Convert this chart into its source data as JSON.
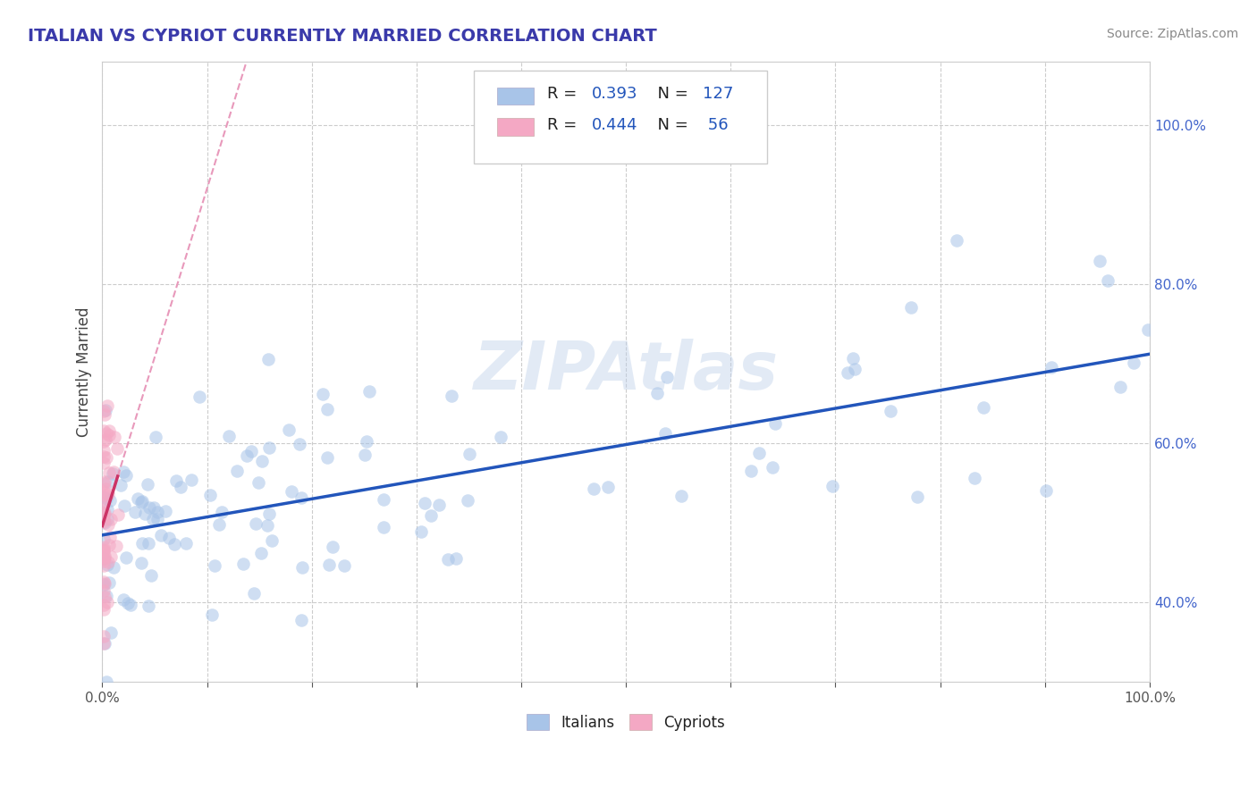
{
  "title": "ITALIAN VS CYPRIOT CURRENTLY MARRIED CORRELATION CHART",
  "source_text": "Source: ZipAtlas.com",
  "ylabel": "Currently Married",
  "title_color": "#3a3aaa",
  "source_color": "#888888",
  "background_color": "#ffffff",
  "grid_color": "#cccccc",
  "watermark_text": "ZIPAtlas",
  "watermark_color": "#b8cce8",
  "legend_R_italian": "0.393",
  "legend_N_italian": "127",
  "legend_R_cypriot": "0.444",
  "legend_N_cypriot": "56",
  "italian_dot_color": "#a8c4e8",
  "cypriot_dot_color": "#f4a8c4",
  "italian_line_color": "#2255bb",
  "cypriot_line_color": "#cc3366",
  "trendline_dashed_color": "#e899bb",
  "tick_color": "#4466cc",
  "legend_value_color": "#2255bb",
  "legend_label_color": "#222222",
  "dot_size": 110,
  "dot_alpha": 0.55,
  "line_width": 2.5
}
